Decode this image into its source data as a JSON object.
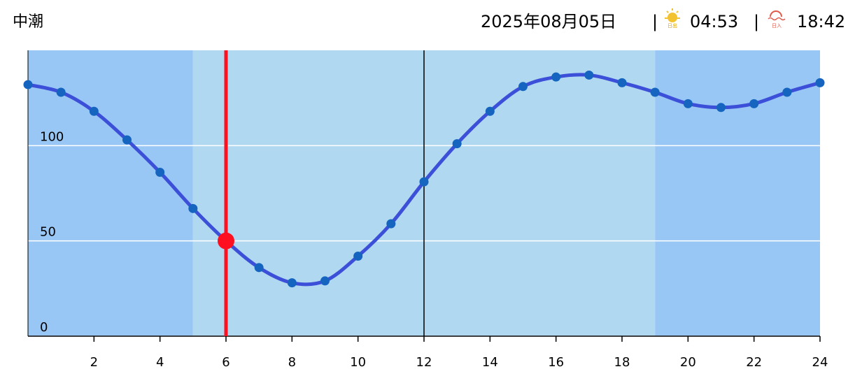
{
  "header": {
    "tide_name": "中潮",
    "date": "2025年08月05日",
    "separator": "|",
    "sunrise_label": "日出",
    "sunrise": "04:53",
    "sunset_label": "日入",
    "sunset": "18:42"
  },
  "chart_data": {
    "type": "line",
    "x": [
      0,
      1,
      2,
      3,
      4,
      5,
      6,
      7,
      8,
      9,
      10,
      11,
      12,
      13,
      14,
      15,
      16,
      17,
      18,
      19,
      20,
      21,
      22,
      23,
      24
    ],
    "series": [
      {
        "color": "#3b4fd8",
        "marker_color": "#1565c0",
        "values": [
          132,
          128,
          118,
          103,
          86,
          67,
          50,
          36,
          28,
          29,
          42,
          59,
          81,
          101,
          118,
          131,
          136,
          137,
          133,
          128,
          122,
          120,
          122,
          128,
          133
        ]
      }
    ],
    "xlim": [
      0,
      24
    ],
    "ylim": [
      0,
      150
    ],
    "xticks": [
      2,
      4,
      6,
      8,
      10,
      12,
      14,
      16,
      18,
      20,
      22,
      24
    ],
    "yticks": [
      0,
      50,
      100
    ],
    "grid": true,
    "daylight": [
      5,
      19
    ],
    "night_color": "#99c7f5",
    "day_color": "#b0d8f0",
    "noon": 12,
    "current_x": 6,
    "current_color": "#ff1020"
  }
}
